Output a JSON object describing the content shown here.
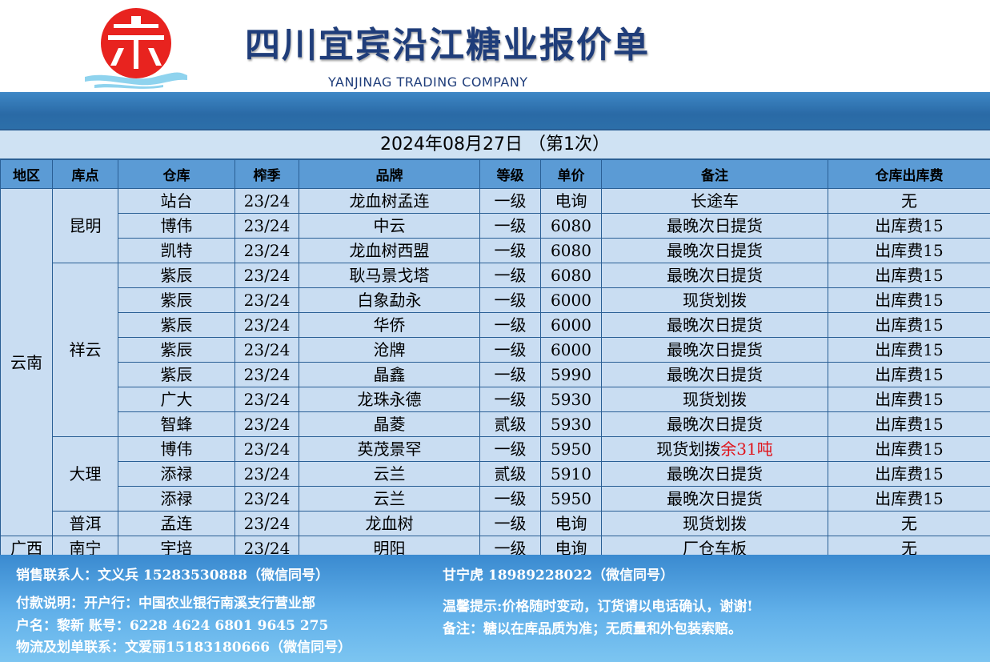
{
  "header": {
    "title": "四川宜宾沿江糖业报价单",
    "subtitle": "YANJINAG TRADING COMPANY",
    "logo_colors": {
      "circle": "#e8231f",
      "wave": "#8fd3ee",
      "mark": "#ffffff"
    }
  },
  "date_line": "2024年08月27日 （第1次）",
  "columns": [
    "地区",
    "库点",
    "仓库",
    "榨季",
    "品牌",
    "等级",
    "单价",
    "备注",
    "仓库出库费"
  ],
  "regions": [
    {
      "name": "云南",
      "rows": 14
    },
    {
      "name": "广西",
      "rows": 1
    }
  ],
  "depots": [
    {
      "name": "昆明",
      "rows": 3
    },
    {
      "name": "祥云",
      "rows": 7
    },
    {
      "name": "大理",
      "rows": 3
    },
    {
      "name": "普洱",
      "rows": 1
    },
    {
      "name": "南宁",
      "rows": 1
    }
  ],
  "rows": [
    {
      "warehouse": "站台",
      "season": "23/24",
      "brand": "龙血树孟连",
      "grade": "一级",
      "price": "电询",
      "note": "长途车",
      "note_extra": "",
      "fee": "无"
    },
    {
      "warehouse": "博伟",
      "season": "23/24",
      "brand": "中云",
      "grade": "一级",
      "price": "6080",
      "note": "最晚次日提货",
      "note_extra": "",
      "fee": "出库费15"
    },
    {
      "warehouse": "凯特",
      "season": "23/24",
      "brand": "龙血树西盟",
      "grade": "一级",
      "price": "6080",
      "note": "最晚次日提货",
      "note_extra": "",
      "fee": "出库费15"
    },
    {
      "warehouse": "紫辰",
      "season": "23/24",
      "brand": "耿马景戈塔",
      "grade": "一级",
      "price": "6080",
      "note": "最晚次日提货",
      "note_extra": "",
      "fee": "出库费15"
    },
    {
      "warehouse": "紫辰",
      "season": "23/24",
      "brand": "白象勐永",
      "grade": "一级",
      "price": "6000",
      "note": "现货划拨",
      "note_extra": "",
      "fee": "出库费15"
    },
    {
      "warehouse": "紫辰",
      "season": "23/24",
      "brand": "华侨",
      "grade": "一级",
      "price": "6000",
      "note": "最晚次日提货",
      "note_extra": "",
      "fee": "出库费15"
    },
    {
      "warehouse": "紫辰",
      "season": "23/24",
      "brand": "沧牌",
      "grade": "一级",
      "price": "6000",
      "note": "最晚次日提货",
      "note_extra": "",
      "fee": "出库费15"
    },
    {
      "warehouse": "紫辰",
      "season": "23/24",
      "brand": "晶鑫",
      "grade": "一级",
      "price": "5990",
      "note": "最晚次日提货",
      "note_extra": "",
      "fee": "出库费15"
    },
    {
      "warehouse": "广大",
      "season": "23/24",
      "brand": "龙珠永德",
      "grade": "一级",
      "price": "5930",
      "note": "现货划拨",
      "note_extra": "",
      "fee": "出库费15"
    },
    {
      "warehouse": "智蜂",
      "season": "23/24",
      "brand": "晶菱",
      "grade": "贰级",
      "price": "5930",
      "note": "最晚次日提货",
      "note_extra": "",
      "fee": "出库费15"
    },
    {
      "warehouse": "博伟",
      "season": "23/24",
      "brand": "英茂景罕",
      "grade": "一级",
      "price": "5950",
      "note": "现货划拨",
      "note_extra": "余31吨",
      "fee": "出库费15"
    },
    {
      "warehouse": "添禄",
      "season": "23/24",
      "brand": "云兰",
      "grade": "贰级",
      "price": "5910",
      "note": "最晚次日提货",
      "note_extra": "",
      "fee": "出库费15"
    },
    {
      "warehouse": "添禄",
      "season": "23/24",
      "brand": "云兰",
      "grade": "一级",
      "price": "5950",
      "note": "最晚次日提货",
      "note_extra": "",
      "fee": "出库费15"
    },
    {
      "warehouse": "孟连",
      "season": "23/24",
      "brand": "龙血树",
      "grade": "一级",
      "price": "电询",
      "note": "现货划拨",
      "note_extra": "",
      "fee": "无"
    },
    {
      "warehouse": "宇培",
      "season": "23/24",
      "brand": "明阳",
      "grade": "一级",
      "price": "电询",
      "note": "厂仓车板",
      "note_extra": "",
      "fee": "无"
    }
  ],
  "footer": {
    "sales1": "销售联系人：文义兵 15283530888（微信同号）",
    "sales2": "甘宁虎 18989228022（微信同号）",
    "pay": "付款说明：开户行：中国农业银行南溪支行营业部",
    "account": "户名：黎新  账号：6228 4624 6801 9645 275",
    "logistics": "物流及划单联系：文爱丽15183180666（微信同号）",
    "tip": "温馨提示:价格随时变动，订货请以电话确认，谢谢!",
    "remark": "备注：糖以在库品质为准；无质量和外包装索赔。"
  }
}
